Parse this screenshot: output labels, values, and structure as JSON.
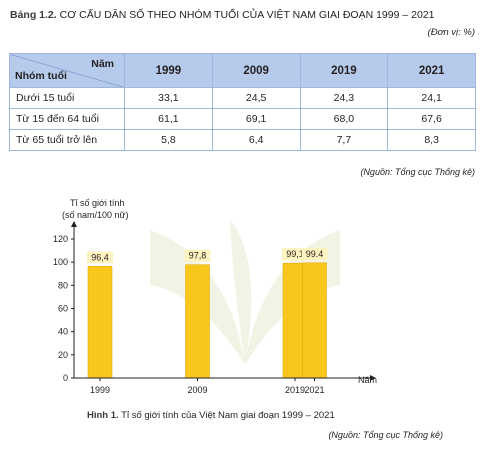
{
  "table": {
    "label": "Bảng 1.2.",
    "title": "CƠ CẤU DÂN SỐ THEO NHÓM TUỔI CỦA VIỆT NAM GIAI ĐOẠN 1999 – 2021",
    "unit": "(Đơn vị: %)",
    "header_year": "Năm",
    "header_group": "Nhóm tuổi",
    "years": [
      "1999",
      "2009",
      "2019",
      "2021"
    ],
    "rows": [
      {
        "label": "Dưới 15 tuổi",
        "values": [
          "33,1",
          "24,5",
          "24,3",
          "24,1"
        ]
      },
      {
        "label": "Từ 15 đến 64 tuổi",
        "values": [
          "61,1",
          "69,1",
          "68,0",
          "67,6"
        ]
      },
      {
        "label": "Từ 65 tuổi trở lên",
        "values": [
          "5,8",
          "6,4",
          "7,7",
          "8,3"
        ]
      }
    ],
    "source": "(Nguồn: Tổng cục Thống kê)"
  },
  "figure": {
    "label": "Hình 1.",
    "caption": "Tỉ số giới tính của Việt Nam giai đoạn 1999 – 2021",
    "source": "(Nguồn: Tổng cục Thống kê)"
  },
  "chart_data": {
    "type": "bar",
    "ylabel_line1": "Tỉ số giới tính",
    "ylabel_line2": "(số nam/100 nữ)",
    "xlabel": "Năm",
    "x": [
      1999,
      2009,
      2019,
      2021
    ],
    "categories": [
      "1999",
      "2009",
      "2019",
      "2021"
    ],
    "values": [
      96.4,
      97.8,
      99.1,
      99.4
    ],
    "value_labels": [
      "96,4",
      "97,8",
      "99,1",
      "99.4"
    ],
    "ylim": [
      0,
      120
    ],
    "yticks": [
      0,
      20,
      40,
      60,
      80,
      100,
      120
    ],
    "colors": {
      "bar": "#f9c61c",
      "bar_edge": "#e3ad10",
      "label_box": "#fff3bf",
      "watermark": "#f1f3e4"
    }
  }
}
